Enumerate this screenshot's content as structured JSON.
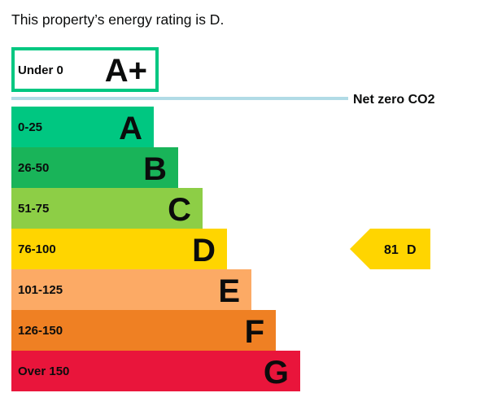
{
  "intro_text": "This property’s energy rating is D.",
  "chart_data": {
    "type": "bar",
    "title": "",
    "top_band": {
      "range": "Under 0",
      "letter": "A+",
      "border_color": "#00c781"
    },
    "net_zero_label": "Net zero CO2",
    "net_zero_line_color": "#b1dbe6",
    "categories": [
      "0-25",
      "26-50",
      "51-75",
      "76-100",
      "101-125",
      "126-150",
      "Over 150"
    ],
    "letters": [
      "A",
      "B",
      "C",
      "D",
      "E",
      "F",
      "G"
    ],
    "values": [
      1,
      2,
      3,
      4,
      5,
      6,
      7
    ],
    "colors": [
      "#00c781",
      "#19b459",
      "#8dce46",
      "#ffd500",
      "#fcaa65",
      "#ef8023",
      "#e9153b"
    ],
    "current_rating": {
      "score": "81",
      "letter": "D",
      "band_index": 3,
      "color": "#ffd500"
    }
  }
}
